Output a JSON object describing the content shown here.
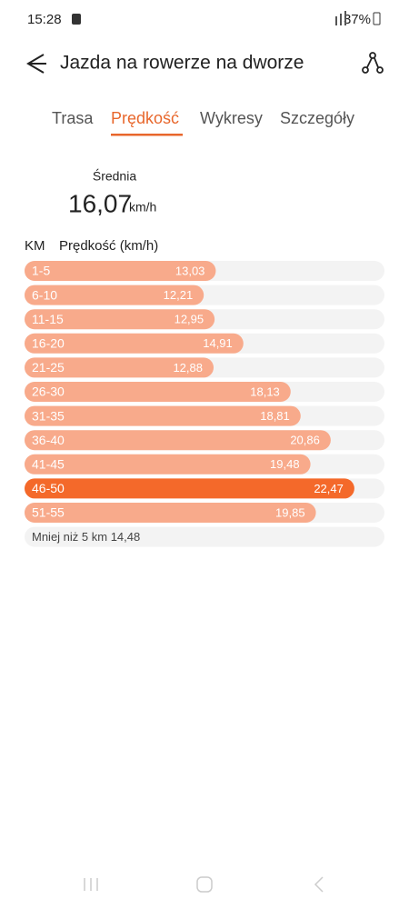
{
  "status_bar": {
    "time": "15:28",
    "battery": "37%"
  },
  "header": {
    "title": "Jazda na rowerze na dworze"
  },
  "tabs": [
    "Trasa",
    "Prędkość",
    "Wykresy",
    "Szczegóły"
  ],
  "summary": {
    "label": "Średnia",
    "value": "16,07",
    "unit": "km/h"
  },
  "chart_data": {
    "type": "bar",
    "orientation": "horizontal",
    "y_label": "KM",
    "x_label": "Prędkość (km/h)",
    "categories": [
      "1-5",
      "6-10",
      "11-15",
      "16-20",
      "21-25",
      "26-30",
      "31-35",
      "36-40",
      "41-45",
      "46-50",
      "51-55"
    ],
    "values": [
      13.03,
      12.21,
      12.95,
      14.91,
      12.88,
      18.13,
      18.81,
      20.86,
      19.48,
      22.47,
      19.85
    ],
    "value_labels": [
      "13,03",
      "12,21",
      "12,95",
      "14,91",
      "12,88",
      "18,13",
      "18,81",
      "20,86",
      "19,48",
      "22,47",
      "19,85"
    ],
    "color": "#f8aa8b",
    "highlight_color": "#f4692a",
    "track_color": "#f3f3f3",
    "note": "Mniej niż 5 km 14,48"
  }
}
